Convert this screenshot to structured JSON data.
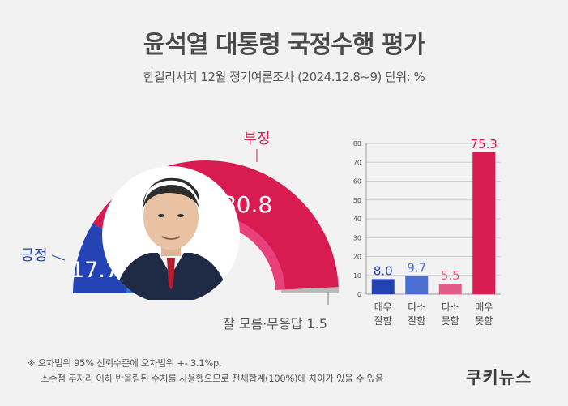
{
  "title": "윤석열 대통령 국정수행 평가",
  "subtitle": "한길리서치 12월 정기여론조사 (2024.12.8~9) 단위: %",
  "colors": {
    "positive": "#2443b5",
    "positive_inner": "#3b6ee0",
    "negative": "#d81b50",
    "negative_inner": "#e8407a",
    "unknown": "#b9b9b9",
    "bars": [
      "#2443b5",
      "#4a6fd0",
      "#e35a86",
      "#d81b50"
    ]
  },
  "chart_data": [
    {
      "type": "pie",
      "variant": "semi-donut gauge",
      "categories": [
        "긍정",
        "부정",
        "잘 모름·무응답"
      ],
      "values": [
        17.7,
        80.8,
        1.5
      ],
      "labels": {
        "positive_name": "긍정",
        "positive_value": "17.7",
        "negative_name": "부정",
        "negative_value": "80.8",
        "unknown_text": "잘 모름·무응답 1.5"
      },
      "center_image": "president-portrait"
    },
    {
      "type": "bar",
      "categories": [
        "매우\n잘함",
        "다소\n잘함",
        "다소\n못함",
        "매우\n못함"
      ],
      "category_lines": [
        [
          "매우",
          "잘함"
        ],
        [
          "다소",
          "잘함"
        ],
        [
          "다소",
          "못함"
        ],
        [
          "매우",
          "못함"
        ]
      ],
      "values": [
        8.0,
        9.7,
        5.5,
        75.3
      ],
      "value_labels": [
        "8.0",
        "9.7",
        "5.5",
        "75.3"
      ],
      "ylim": [
        0,
        80
      ],
      "yticks": [
        0,
        10,
        20,
        30,
        40,
        50,
        60,
        70,
        80
      ],
      "grid": true
    }
  ],
  "notes": [
    "※ 오차범위 95% 신뢰수준에 오차범위 +- 3.1%p.",
    "소수점 두자리 이하 반올림된 수치를 사용했으므로 전체합계(100%)에 차이가 있을 수 있음"
  ],
  "logo_text": "쿠키뉴스"
}
